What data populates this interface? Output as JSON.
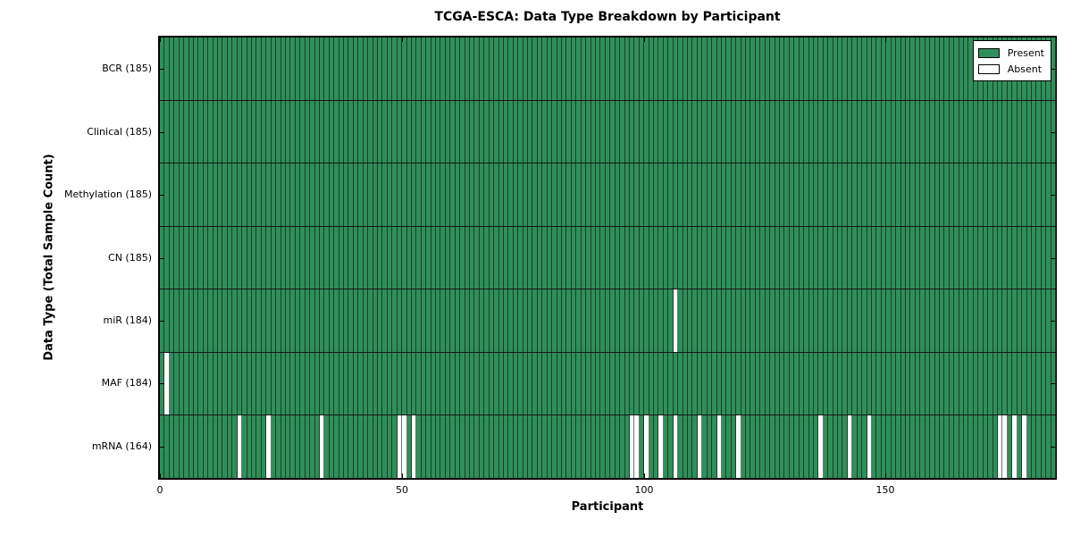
{
  "title": "TCGA-ESCA: Data Type Breakdown by Participant",
  "legend": {
    "present_label": "Present",
    "absent_label": "Absent"
  },
  "colors": {
    "present": "#2F8F5B",
    "absent": "#FFFFFF",
    "edge": "rgba(0,0,0,0.55)",
    "frame": "#000000"
  },
  "chart_data": {
    "type": "heatmap",
    "title": "TCGA-ESCA: Data Type Breakdown by Participant",
    "xlabel": "Participant",
    "ylabel": "Data Type (Total Sample Count)",
    "x_range": [
      0,
      185
    ],
    "x_ticks": [
      0,
      50,
      100,
      150
    ],
    "grid": false,
    "legend_position": "upper right",
    "legend_entries": [
      "Present",
      "Absent"
    ],
    "n_participants": 185,
    "rows": [
      {
        "label": "BCR (185)",
        "data_type": "BCR",
        "total": 185,
        "absent_participants": []
      },
      {
        "label": "Clinical (185)",
        "data_type": "Clinical",
        "total": 185,
        "absent_participants": []
      },
      {
        "label": "Methylation (185)",
        "data_type": "Methylation",
        "total": 185,
        "absent_participants": []
      },
      {
        "label": "CN (185)",
        "data_type": "CN",
        "total": 185,
        "absent_participants": []
      },
      {
        "label": "miR (184)",
        "data_type": "miR",
        "total": 184,
        "absent_participants": [
          106
        ]
      },
      {
        "label": "MAF (184)",
        "data_type": "MAF",
        "total": 184,
        "absent_participants": [
          1
        ]
      },
      {
        "label": "mRNA (164)",
        "data_type": "mRNA",
        "total": 164,
        "absent_participants": [
          16,
          22,
          33,
          49,
          50,
          52,
          97,
          98,
          100,
          103,
          106,
          111,
          115,
          119,
          136,
          142,
          146,
          173,
          174,
          176,
          178
        ]
      }
    ]
  }
}
